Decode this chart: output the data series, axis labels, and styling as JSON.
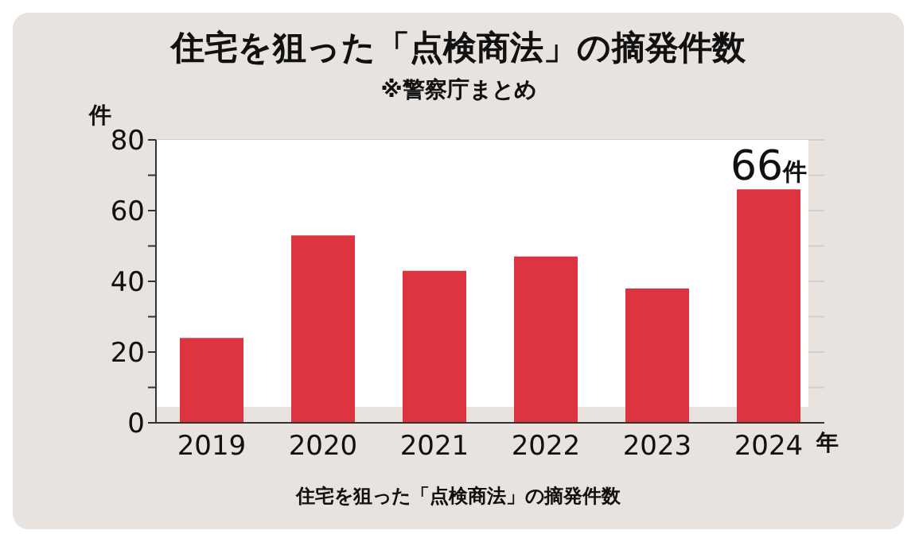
{
  "chart_data": {
    "type": "bar",
    "title": "住宅を狙った「点検商法」の摘発件数",
    "subtitle": "※警察庁まとめ",
    "ylabel": "件",
    "xlabel": "年",
    "annotations": [
      "住宅を狙った「点検商法」の摘発件数"
    ],
    "categories": [
      "2019",
      "2020",
      "2021",
      "2022",
      "2023",
      "2024"
    ],
    "values": [
      24,
      53,
      43,
      47,
      38,
      66
    ],
    "value_labels": [
      null,
      null,
      null,
      null,
      null,
      "66件"
    ],
    "color": "#de3442",
    "ylim": [
      0,
      80
    ],
    "yticks": [
      0,
      {
        "value": 10,
        "label": null
      },
      20,
      {
        "value": 30,
        "label": null
      },
      40,
      {
        "value": 50,
        "label": null
      },
      60,
      {
        "value": 70,
        "label": null
      },
      80
    ],
    "grid": "y"
  }
}
